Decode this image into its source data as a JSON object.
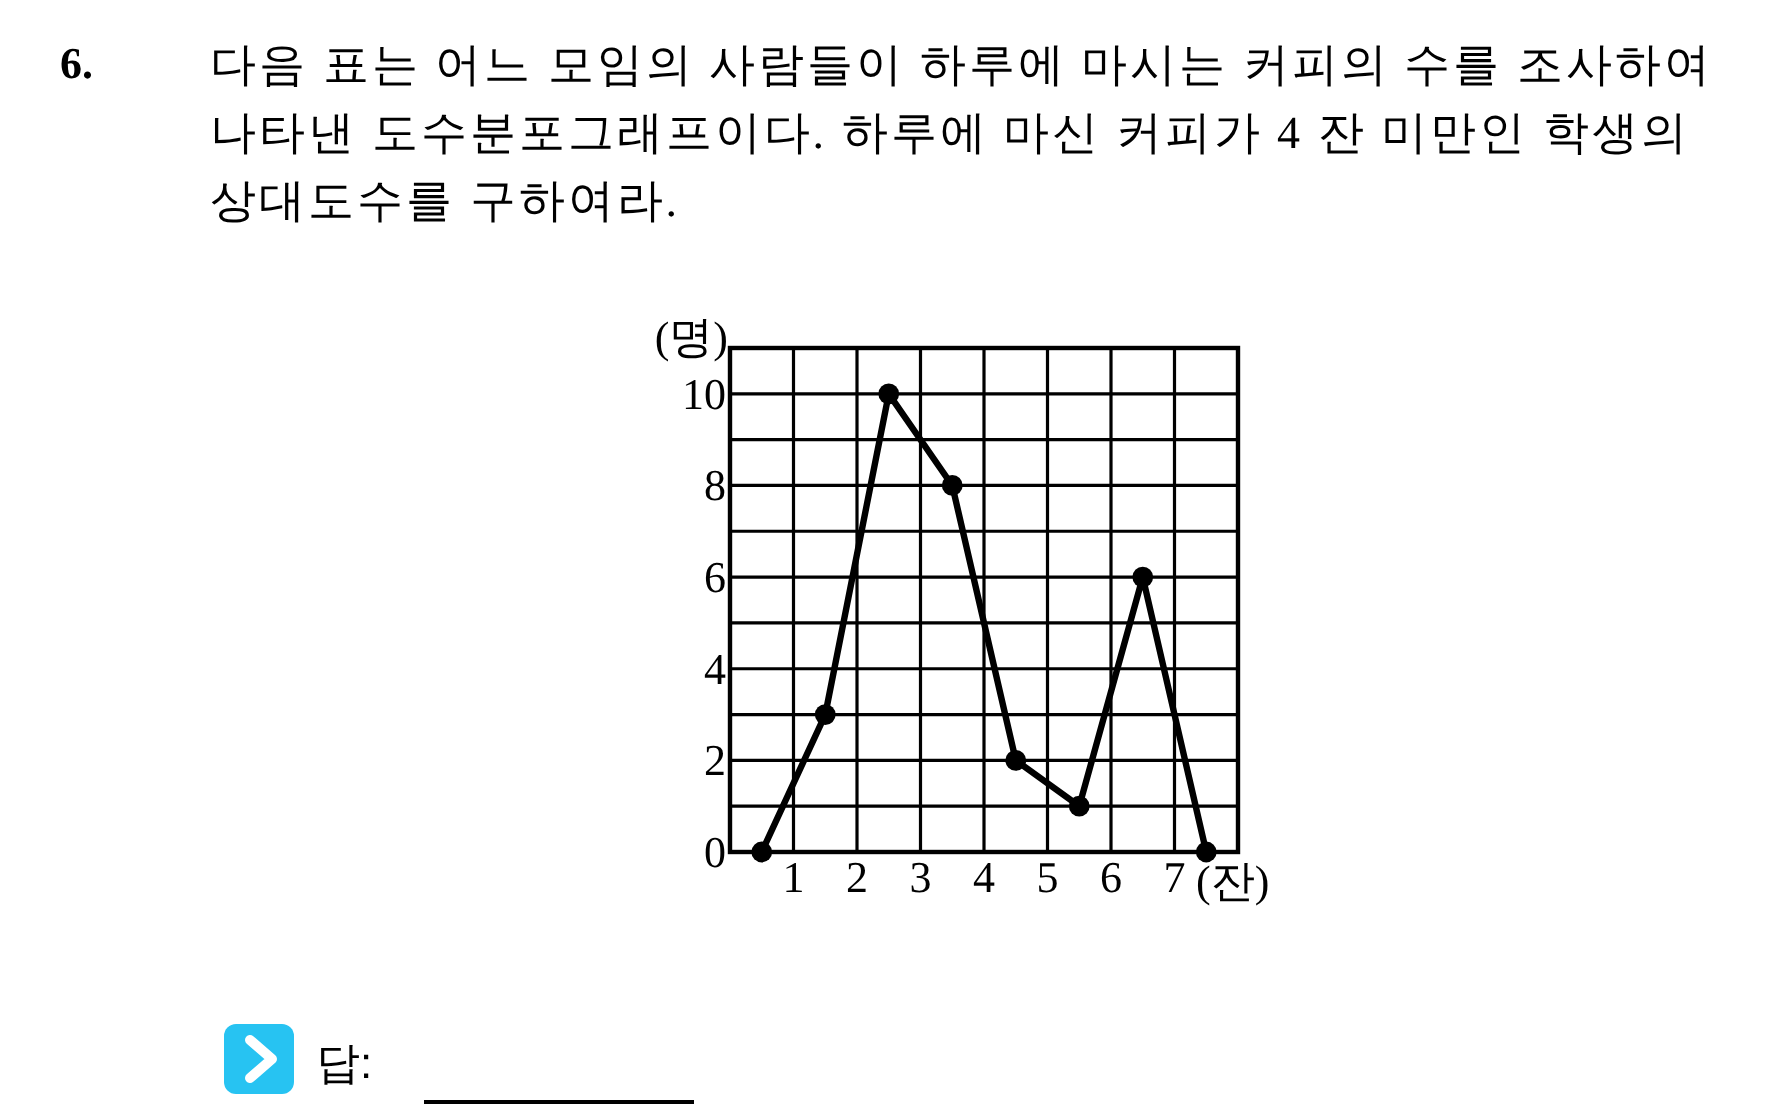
{
  "chart_data": {
    "type": "line",
    "title": "다음 표는 어느 모임의 사람들이 하루에 마시는 커피의 수를 조사하여 나타낸 도수분포그래프이다. 하루에 마신 커피가 4 잔 미만인 학생의 상대도수를 구하여라.",
    "annotations": [
      "6.",
      "답:"
    ],
    "xlabel": "(잔)",
    "ylabel": "(명)",
    "x": [
      0.5,
      1.5,
      2.5,
      3.5,
      4.5,
      5.5,
      6.5,
      7.5
    ],
    "values": [
      0,
      3,
      10,
      8,
      2,
      1,
      6,
      0
    ],
    "color": "#000000",
    "xlim": [
      0,
      8
    ],
    "xticks": [
      1,
      2,
      3,
      4,
      5,
      6,
      7
    ],
    "ylim": [
      0,
      11
    ],
    "yticks": [
      0,
      {
        "value": 1,
        "label": null
      },
      2,
      {
        "value": 3,
        "label": null
      },
      4,
      {
        "value": 5,
        "label": null
      },
      6,
      {
        "value": 7,
        "label": null
      },
      8,
      {
        "value": 9,
        "label": null
      },
      10
    ],
    "grid": true,
    "marker": "circle",
    "line_style": "solid"
  }
}
